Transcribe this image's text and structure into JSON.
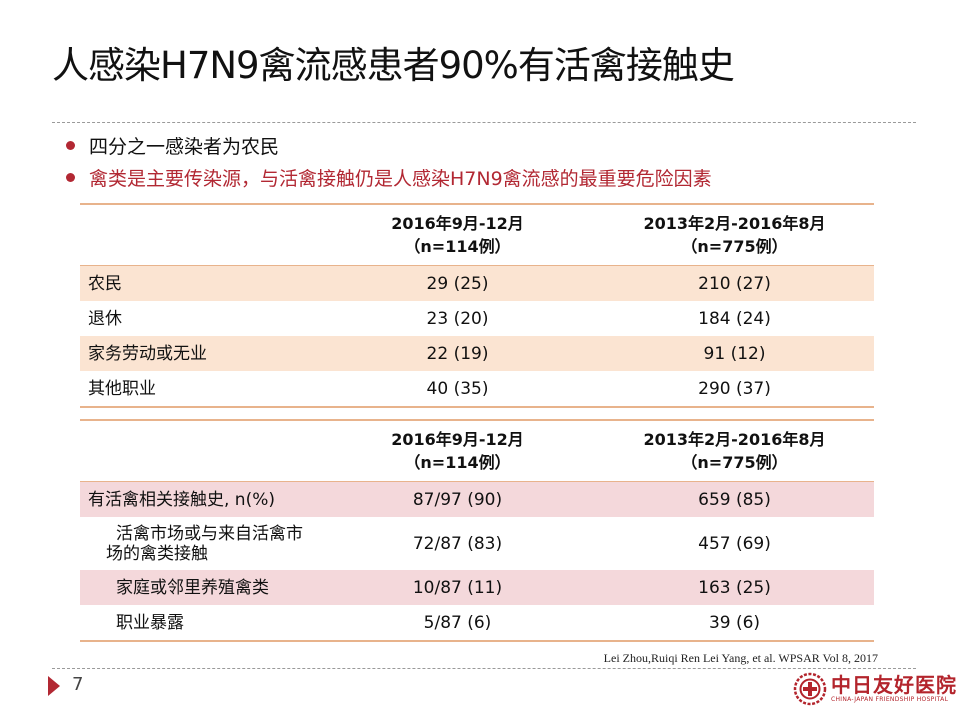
{
  "slide": {
    "title": "人感染H7N9禽流感患者90%有活禽接触史",
    "bullets": [
      {
        "text": "四分之一感染者为农民",
        "color": "#111111"
      },
      {
        "text": "禽类是主要传染源，与活禽接触仍是人感染H7N9禽流感的最重要危险因素",
        "color": "#b22833"
      }
    ],
    "accent_color": "#b22833",
    "page_number": "7",
    "citation": "Lei Zhou,Ruiqi Ren Lei Yang, et al. WPSAR Vol 8, 2017"
  },
  "table1": {
    "headers": [
      {
        "line1": "",
        "line2": ""
      },
      {
        "line1": "2016年9月-12月",
        "line2": "（n=114例）"
      },
      {
        "line1": "2013年2月-2016年8月",
        "line2": "（n=775例）"
      }
    ],
    "rows": [
      {
        "label": "农民",
        "v1": "29 (25)",
        "v2": "210 (27)"
      },
      {
        "label": "退休",
        "v1": "23 (20)",
        "v2": "184 (24)"
      },
      {
        "label": "家务劳动或无业",
        "v1": "22 (19)",
        "v2": "91 (12)"
      },
      {
        "label": "其他职业",
        "v1": "40 (35)",
        "v2": "290 (37)"
      }
    ],
    "shade_color": "#fbe4d2"
  },
  "table2": {
    "headers": [
      {
        "line1": "",
        "line2": ""
      },
      {
        "line1": "2016年9月-12月",
        "line2": "（n=114例）"
      },
      {
        "line1": "2013年2月-2016年8月",
        "line2": "（n=775例）"
      }
    ],
    "rows": [
      {
        "label": "有活禽相关接触史, n(%)",
        "v1": "87/97 (90)",
        "v2": "659 (85)"
      },
      {
        "label_line1": "活禽市场或与来自活禽市",
        "label_line2": "场的禽类接触",
        "v1": "72/87 (83)",
        "v2": "457 (69)"
      },
      {
        "label": "家庭或邻里养殖禽类",
        "v1": "10/87 (11)",
        "v2": "163 (25)"
      },
      {
        "label": "职业暴露",
        "v1": "5/87 (6)",
        "v2": "39 (6)"
      }
    ],
    "shade_color": "#f4d8db"
  },
  "logo": {
    "name_cn": "中日友好医院",
    "name_en": "CHINA-JAPAN FRIENDSHIP HOSPITAL",
    "emblem": "hospital-emblem-icon",
    "color": "#b3242c"
  }
}
